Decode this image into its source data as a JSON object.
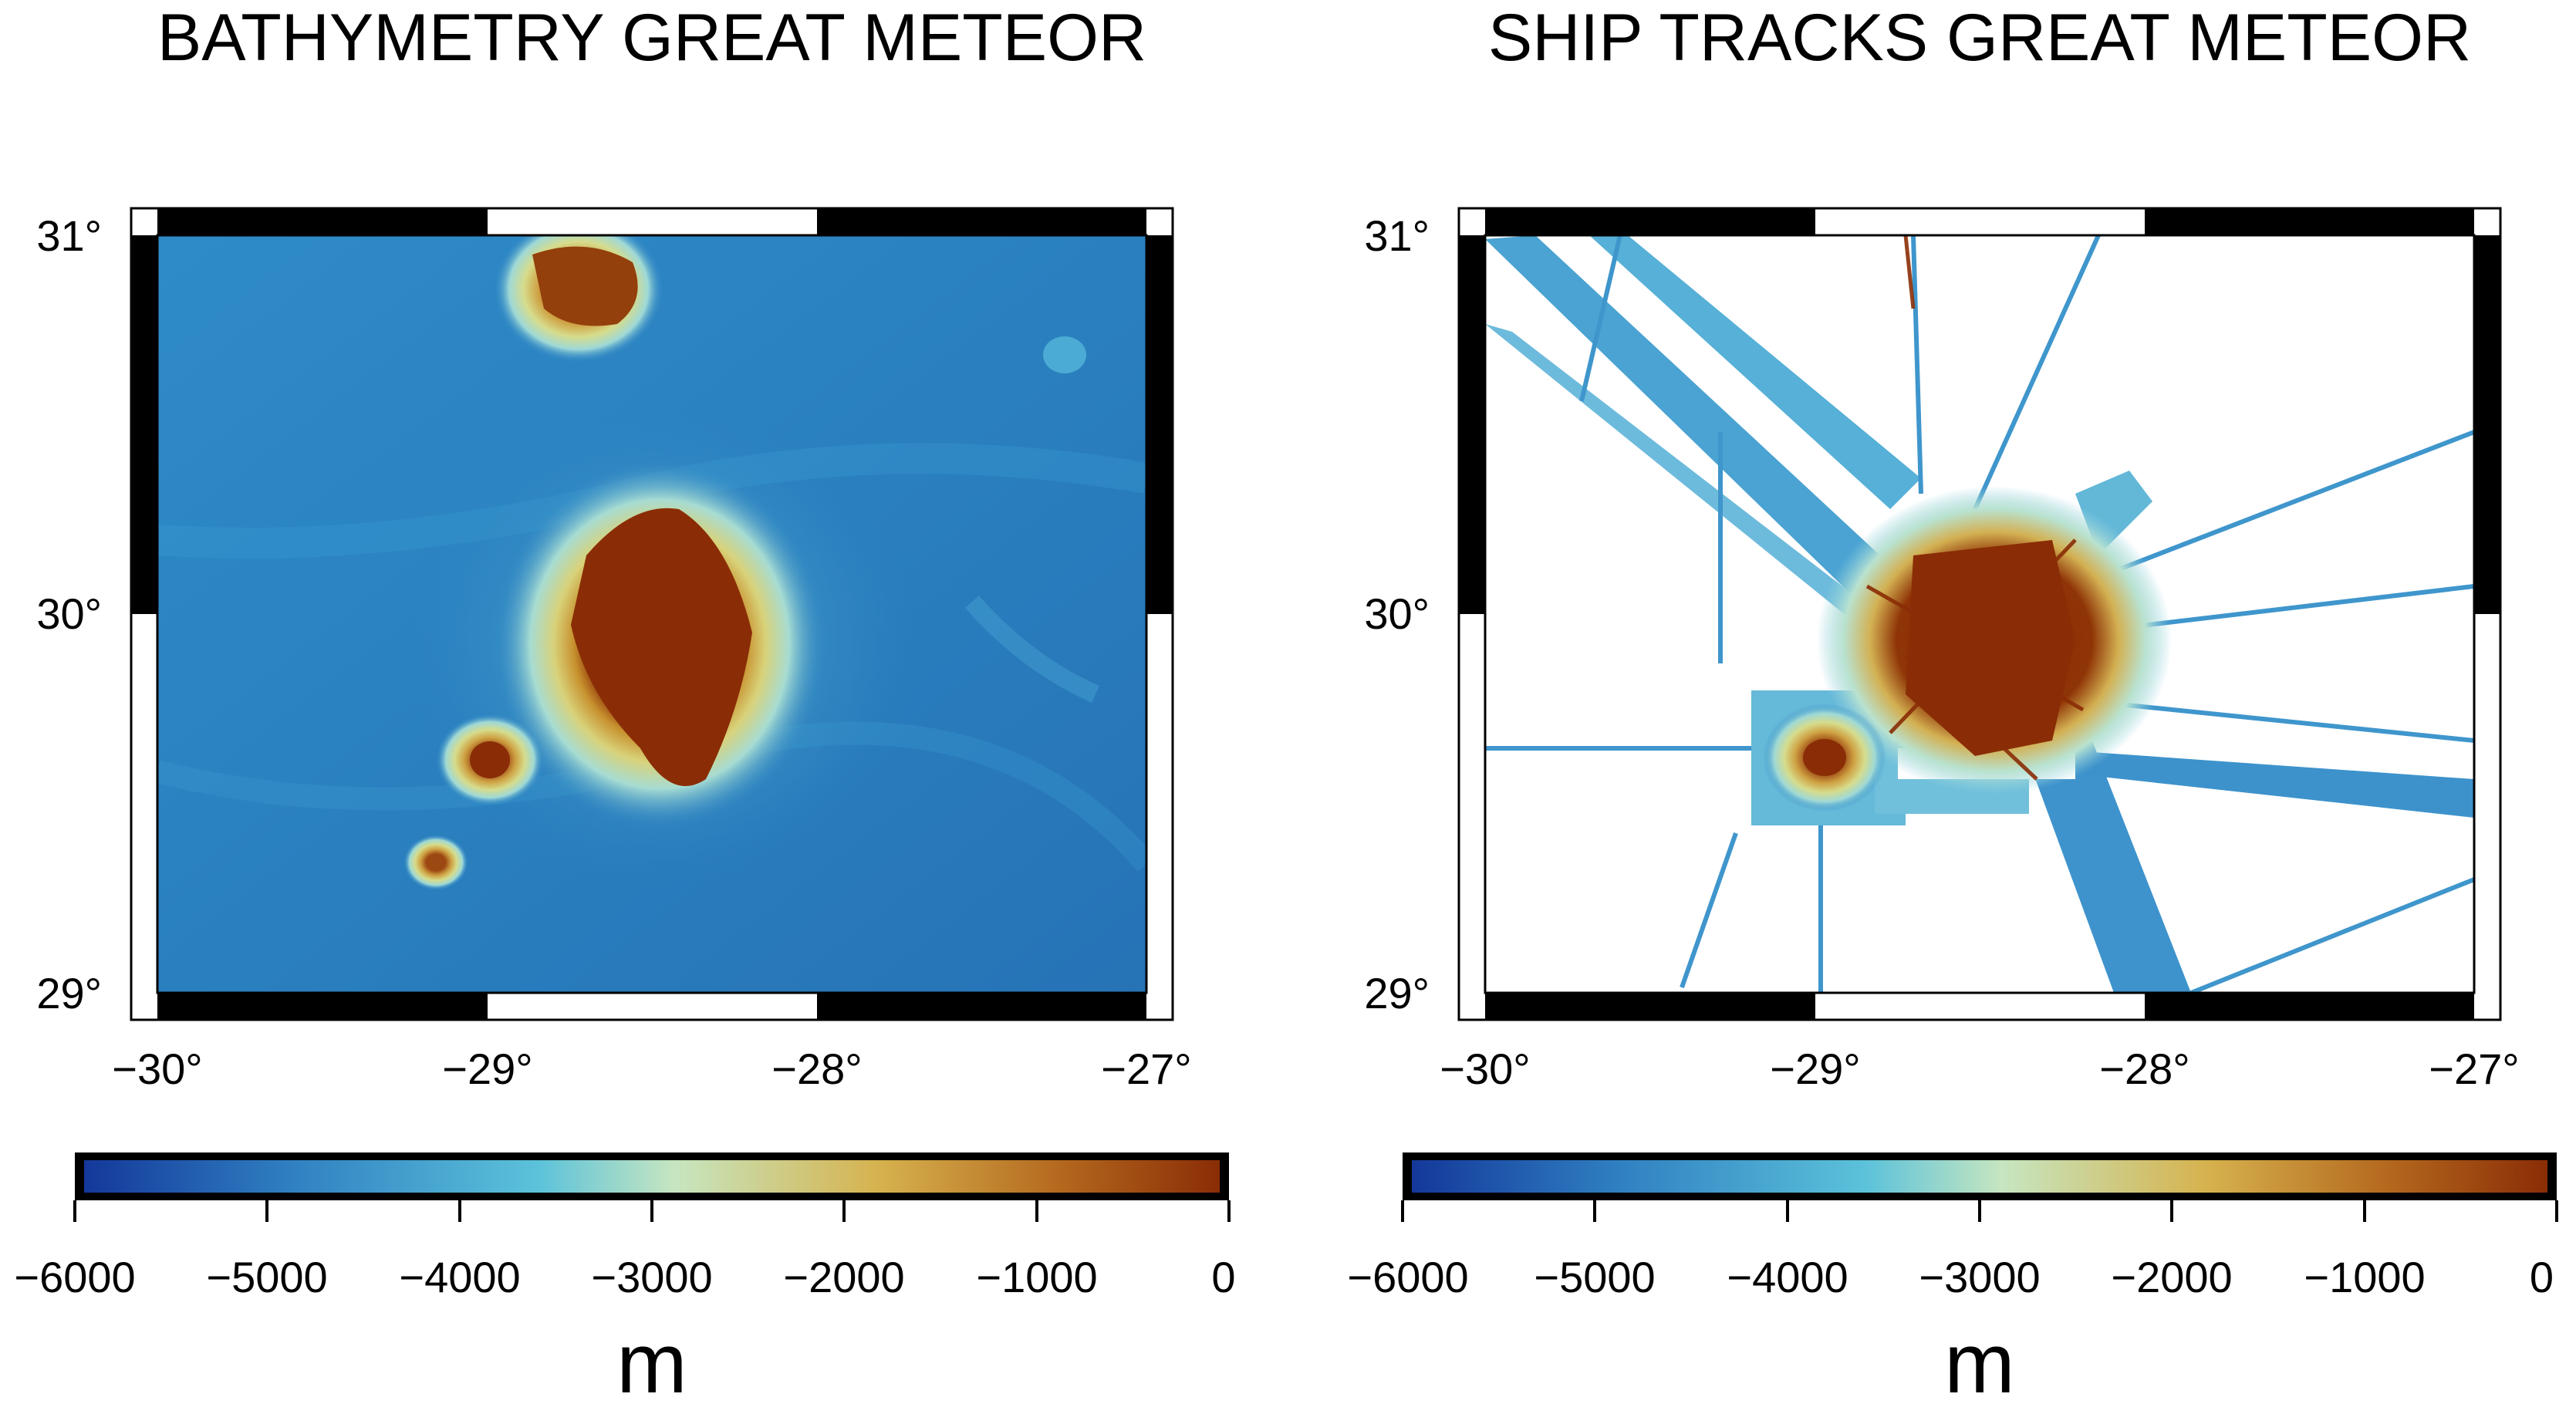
{
  "panels": [
    {
      "id": "bathymetry",
      "title": "BATHYMETRY GREAT METEOR",
      "lon_ticks": [
        "−30°",
        "−29°",
        "−28°",
        "−27°"
      ],
      "lat_ticks": [
        "31°",
        "30°",
        "29°"
      ],
      "colorbar_ticks": [
        "−6000",
        "−5000",
        "−4000",
        "−3000",
        "−2000",
        "−1000",
        "0"
      ],
      "colorbar_unit": "m"
    },
    {
      "id": "ship-tracks",
      "title": "SHIP TRACKS GREAT METEOR",
      "lon_ticks": [
        "−30°",
        "−29°",
        "−28°",
        "−27°"
      ],
      "lat_ticks": [
        "31°",
        "30°",
        "29°"
      ],
      "colorbar_ticks": [
        "−6000",
        "−5000",
        "−4000",
        "−3000",
        "−2000",
        "−1000",
        "0"
      ],
      "colorbar_unit": "m"
    }
  ],
  "map_extent": {
    "lon": [
      -30,
      -27
    ],
    "lat": [
      29,
      31
    ]
  },
  "colormap": {
    "range": [
      -6000,
      0
    ],
    "stops": [
      "#14389a",
      "#2f7fc1",
      "#5cc2da",
      "#c6e6c0",
      "#d6b24e",
      "#b4681e",
      "#8a2d06"
    ]
  },
  "colors": {
    "deep_ocean": "#2d86c4",
    "shallow_seamount": "#8f3d07",
    "frame_dark": "#000000",
    "frame_light": "#ffffff"
  }
}
